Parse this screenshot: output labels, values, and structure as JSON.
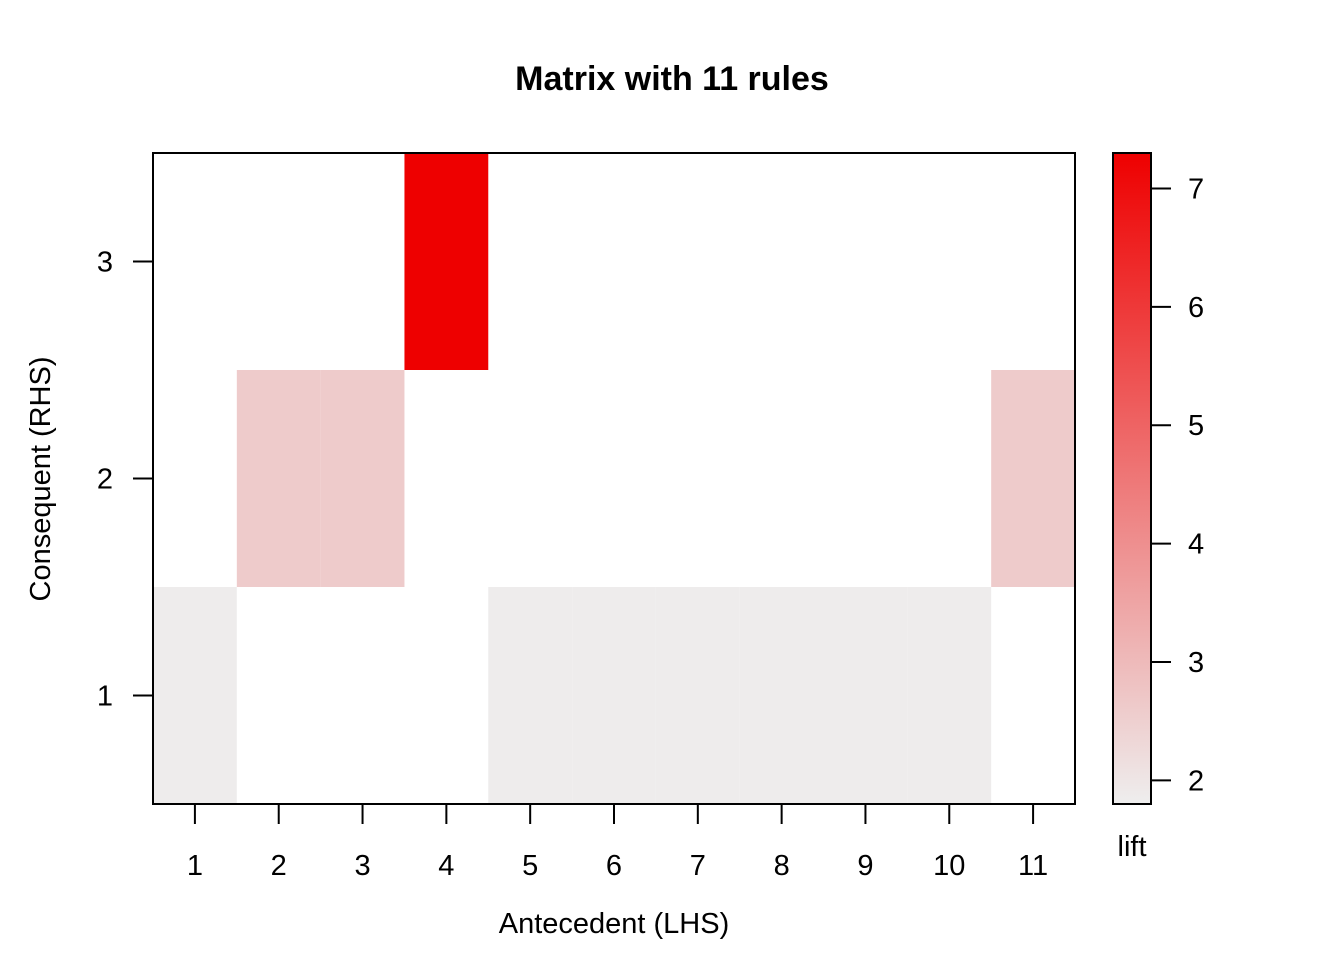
{
  "chart_data": {
    "type": "heatmap",
    "title": "Matrix with 11 rules",
    "xlabel": "Antecedent (LHS)",
    "ylabel": "Consequent (RHS)",
    "x_ticks": [
      "1",
      "2",
      "3",
      "4",
      "5",
      "6",
      "7",
      "8",
      "9",
      "10",
      "11"
    ],
    "y_ticks": [
      "1",
      "2",
      "3"
    ],
    "xlim": [
      0.5,
      11.5
    ],
    "ylim": [
      0.5,
      3.5
    ],
    "cells": [
      {
        "x": 1,
        "y": 1,
        "lift": 1.85
      },
      {
        "x": 2,
        "y": 2,
        "lift": 2.6
      },
      {
        "x": 3,
        "y": 2,
        "lift": 2.6
      },
      {
        "x": 4,
        "y": 3,
        "lift": 7.3
      },
      {
        "x": 5,
        "y": 1,
        "lift": 1.85
      },
      {
        "x": 6,
        "y": 1,
        "lift": 1.85
      },
      {
        "x": 7,
        "y": 1,
        "lift": 1.85
      },
      {
        "x": 8,
        "y": 1,
        "lift": 1.85
      },
      {
        "x": 9,
        "y": 1,
        "lift": 1.85
      },
      {
        "x": 10,
        "y": 1,
        "lift": 1.85
      },
      {
        "x": 11,
        "y": 2,
        "lift": 2.6
      }
    ],
    "colorbar": {
      "label": "lift",
      "min": 1.8,
      "max": 7.3,
      "ticks": [
        "2",
        "3",
        "4",
        "5",
        "6",
        "7"
      ],
      "low_color": "#eeeeee",
      "high_color": "#ee0000"
    }
  }
}
